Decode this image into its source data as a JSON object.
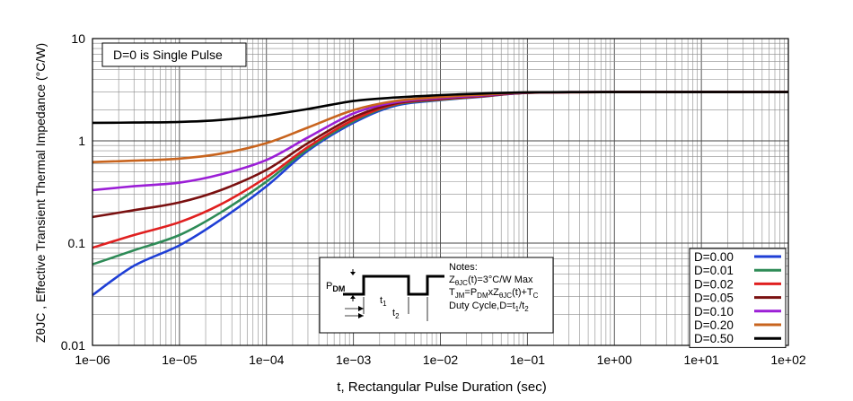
{
  "chart_data": {
    "type": "line",
    "title": "",
    "xlabel": "t, Rectangular Pulse Duration (sec)",
    "ylabel": "ZθJC , Effective Transient Thermal Impedance (°C/W)",
    "x_scale": "log",
    "y_scale": "log",
    "xlim": [
      1e-06,
      100
    ],
    "ylim": [
      0.01,
      10
    ],
    "x_ticks": [
      1e-06,
      1e-05,
      0.0001,
      0.001,
      0.01,
      0.1,
      1,
      10,
      100
    ],
    "x_tick_labels": [
      "1e−06",
      "1e−05",
      "1e−04",
      "1e−03",
      "1e−02",
      "1e−01",
      "1e+00",
      "1e+01",
      "1e+02"
    ],
    "y_ticks": [
      0.01,
      0.1,
      1,
      10
    ],
    "y_tick_labels": [
      "0.01",
      "0.1",
      "1",
      "10"
    ],
    "grid": true,
    "annotation": "D=0 is Single Pulse",
    "legend_position": "bottom-right",
    "x": [
      1e-06,
      3e-06,
      1e-05,
      3e-05,
      0.0001,
      0.0003,
      0.001,
      0.003,
      0.01,
      0.03,
      0.1,
      1,
      10,
      100
    ],
    "series": [
      {
        "name": "D=0.00",
        "color": "#1f3fd6",
        "values": [
          0.031,
          0.06,
          0.095,
          0.17,
          0.36,
          0.8,
          1.5,
          2.2,
          2.5,
          2.7,
          2.95,
          3.0,
          3.0,
          3.0
        ]
      },
      {
        "name": "D=0.01",
        "color": "#2e8b57",
        "values": [
          0.062,
          0.085,
          0.12,
          0.2,
          0.4,
          0.83,
          1.55,
          2.25,
          2.52,
          2.72,
          2.95,
          3.0,
          3.0,
          3.0
        ]
      },
      {
        "name": "D=0.02",
        "color": "#e02020",
        "values": [
          0.09,
          0.12,
          0.16,
          0.24,
          0.44,
          0.87,
          1.6,
          2.28,
          2.55,
          2.73,
          2.95,
          3.0,
          3.0,
          3.0
        ]
      },
      {
        "name": "D=0.05",
        "color": "#7a1010",
        "values": [
          0.18,
          0.21,
          0.25,
          0.33,
          0.52,
          0.95,
          1.7,
          2.32,
          2.58,
          2.75,
          2.95,
          3.0,
          3.0,
          3.0
        ]
      },
      {
        "name": "D=0.10",
        "color": "#9b1fd6",
        "values": [
          0.33,
          0.36,
          0.39,
          0.47,
          0.65,
          1.08,
          1.85,
          2.38,
          2.62,
          2.78,
          2.96,
          3.0,
          3.0,
          3.0
        ]
      },
      {
        "name": "D=0.20",
        "color": "#c8641e",
        "values": [
          0.62,
          0.64,
          0.67,
          0.75,
          0.95,
          1.35,
          2.0,
          2.45,
          2.68,
          2.82,
          2.97,
          3.0,
          3.0,
          3.0
        ]
      },
      {
        "name": "D=0.50",
        "color": "#000000",
        "values": [
          1.5,
          1.51,
          1.53,
          1.6,
          1.78,
          2.05,
          2.45,
          2.65,
          2.8,
          2.9,
          2.98,
          3.0,
          3.0,
          3.0
        ]
      }
    ]
  },
  "notes_box": {
    "notes_title": "Notes:",
    "line1_prefix": "Z",
    "line1_sub": "θJC",
    "line1_suffix": "(t)=3°C/W Max",
    "line2_a": "T",
    "line2_a_sub": "JM",
    "line2_b": "=P",
    "line2_b_sub": "DM",
    "line2_c": "xZ",
    "line2_c_sub": "θJC",
    "line2_d": "(t)+T",
    "line2_d_sub": "C",
    "line3_prefix": "Duty Cycle,D=t",
    "line3_sub1": "1",
    "line3_mid": "/t",
    "line3_sub2": "2",
    "pdm_label": "P",
    "pdm_sub": "DM",
    "t1_label": "t",
    "t1_sub": "1",
    "t2_label": "t",
    "t2_sub": "2"
  }
}
